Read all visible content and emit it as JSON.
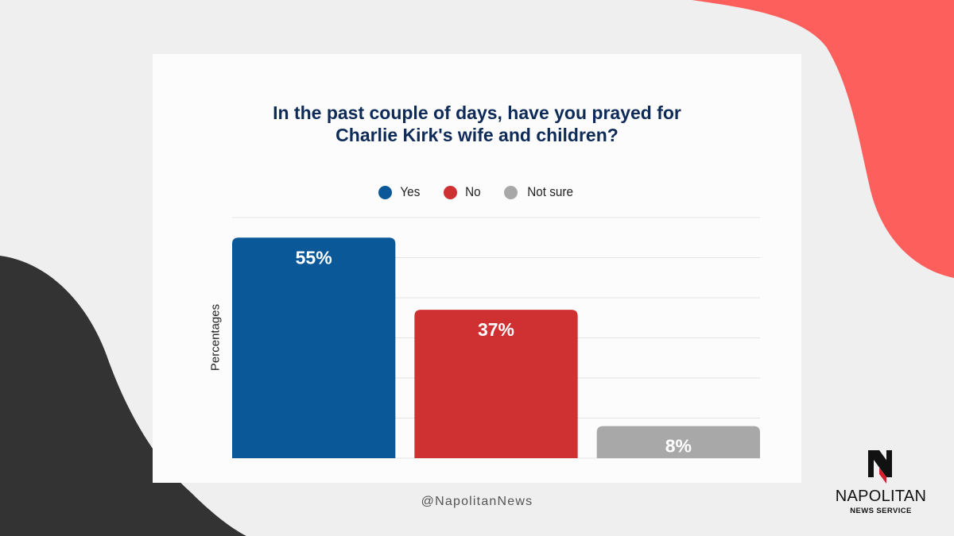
{
  "colors": {
    "background": "#efefef",
    "card": "#fcfcfc",
    "accent_coral": "#fd5f5d",
    "accent_dark": "#333333",
    "title": "#0e2a57"
  },
  "chart_data": {
    "type": "bar",
    "title_lines": [
      "In the past couple of days, have you prayed for",
      "Charlie Kirk's wife and children?"
    ],
    "ylabel": "Percentages",
    "ylim": [
      0,
      60
    ],
    "grid": true,
    "legend_position": "top-center",
    "categories": [
      "Yes",
      "No",
      "Not sure"
    ],
    "values": [
      55,
      37,
      8
    ],
    "data_labels": [
      "55%",
      "37%",
      "8%"
    ],
    "colors": [
      "#0b5899",
      "#cf3133",
      "#a8a8a8"
    ]
  },
  "footer": {
    "handle": "@NapolitanNews"
  },
  "logo": {
    "name": "NAPOLITAN",
    "subtitle": "NEWS SERVICE"
  }
}
